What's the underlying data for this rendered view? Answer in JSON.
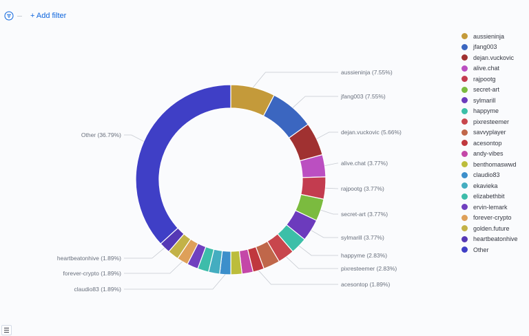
{
  "toolbar": {
    "add_filter_label": "+ Add filter",
    "filter_icon": "filter-icon"
  },
  "colors": [
    "#c49a3a",
    "#3b66c0",
    "#a03131",
    "#bb4fc1",
    "#c33c4f",
    "#7bbb3f",
    "#6c3bbd",
    "#3cbfa8",
    "#c8464d",
    "#c0674a",
    "#c0383e",
    "#c447a8",
    "#bcbd3c",
    "#3c8fcb",
    "#44adc0",
    "#3dbcaa",
    "#7040bf",
    "#dea059",
    "#c3b247",
    "#5538b5",
    "#3f3fc6"
  ],
  "chart_data": {
    "type": "pie",
    "donut": true,
    "slices": [
      {
        "label": "aussieninja",
        "percent": 7.55,
        "callout": "aussieninja (7.55%)"
      },
      {
        "label": "jfang003",
        "percent": 7.55,
        "callout": "jfang003 (7.55%)"
      },
      {
        "label": "dejan.vuckovic",
        "percent": 5.66,
        "callout": "dejan.vuckovic (5.66%)"
      },
      {
        "label": "alive.chat",
        "percent": 3.77,
        "callout": "alive.chat (3.77%)"
      },
      {
        "label": "rajpootg",
        "percent": 3.77,
        "callout": "rajpootg (3.77%)"
      },
      {
        "label": "secret-art",
        "percent": 3.77,
        "callout": "secret-art (3.77%)"
      },
      {
        "label": "sylmarill",
        "percent": 3.77,
        "callout": "sylmarill (3.77%)"
      },
      {
        "label": "happyme",
        "percent": 2.83,
        "callout": "happyme (2.83%)"
      },
      {
        "label": "pixresteemer",
        "percent": 2.83,
        "callout": "pixresteemer (2.83%)"
      },
      {
        "label": "savvyplayer",
        "percent": 2.83,
        "callout": ""
      },
      {
        "label": "acesontop",
        "percent": 1.89,
        "callout": "acesontop (1.89%)"
      },
      {
        "label": "andy-vibes",
        "percent": 1.89,
        "callout": ""
      },
      {
        "label": "benthomaswwd",
        "percent": 1.89,
        "callout": ""
      },
      {
        "label": "claudio83",
        "percent": 1.89,
        "callout": "claudio83 (1.89%)"
      },
      {
        "label": "ekavieka",
        "percent": 1.89,
        "callout": ""
      },
      {
        "label": "elizabethbit",
        "percent": 1.89,
        "callout": ""
      },
      {
        "label": "ervin-lemark",
        "percent": 1.89,
        "callout": ""
      },
      {
        "label": "forever-crypto",
        "percent": 1.89,
        "callout": "forever-crypto (1.89%)"
      },
      {
        "label": "golden.future",
        "percent": 1.89,
        "callout": ""
      },
      {
        "label": "heartbeatonhive",
        "percent": 1.89,
        "callout": "heartbeatonhive (1.89%)"
      },
      {
        "label": "Other",
        "percent": 36.79,
        "callout": "Other (36.79%)"
      }
    ],
    "legend_position": "right"
  }
}
